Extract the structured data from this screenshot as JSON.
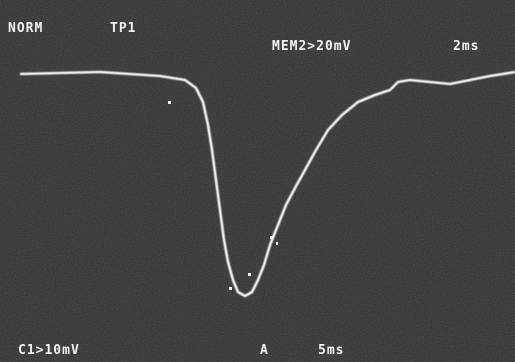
{
  "screen": {
    "top_left": [
      "NORM",
      "TP1"
    ],
    "top_right": [
      "MEM2>20mV",
      "2ms"
    ],
    "bottom": [
      "C1>10mV",
      "A",
      "5ms"
    ]
  }
}
